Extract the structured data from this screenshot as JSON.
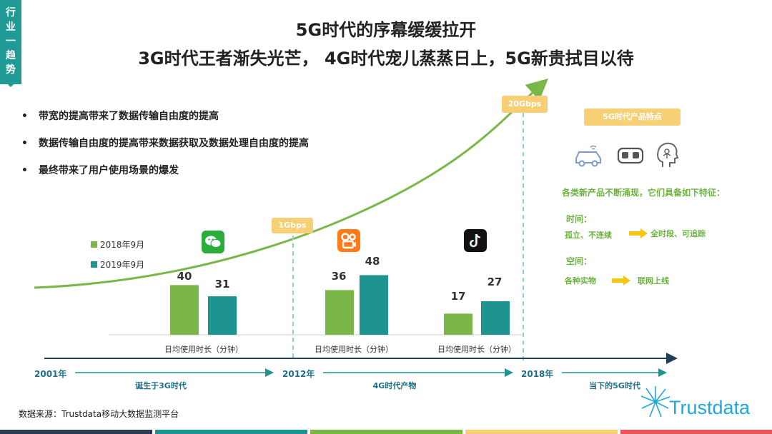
{
  "tag": {
    "chars": [
      "行",
      "业",
      "一",
      "趋",
      "势"
    ]
  },
  "title": {
    "line1": "5G时代的序幕缓缓拉开",
    "line2": "3G时代王者渐失光芒， 4G时代宠儿蒸蒸日上，5G新贵拭目以待"
  },
  "bullets": [
    "带宽的提高带来了数据传输自由度的提高",
    "数据传输自由度的提高带来数据获取及数据处理自由度的提高",
    "最终带来了用户使用场景的爆发"
  ],
  "bandwidth": {
    "b1": "1Gbps",
    "b2": "20Gbps"
  },
  "chart_data": {
    "type": "bar",
    "categories": [
      "日均使用时长（分钟）",
      "日均使用时长（分钟）",
      "日均使用时长（分钟）"
    ],
    "apps": [
      "wechat",
      "kuaishou",
      "douyin"
    ],
    "series": [
      {
        "name": "2018年9月",
        "color": "#7ab648",
        "values": [
          40,
          36,
          17
        ]
      },
      {
        "name": "2019年9月",
        "color": "#1d9490",
        "values": [
          31,
          48,
          27
        ]
      }
    ],
    "ylim": [
      0,
      60
    ]
  },
  "timeline": {
    "years": [
      "2001年",
      "2012年",
      "2018年"
    ],
    "eras": [
      "诞生于3G时代",
      "4G时代产物",
      "当下的5G时代"
    ]
  },
  "right_panel": {
    "badge": "5G时代产品特点",
    "headline": "各类新产品不断涌现，它们具备如下特征：",
    "time_label": "时间：",
    "time_from": "孤立、不连续",
    "time_to": "全时段、可追踪",
    "space_label": "空间：",
    "space_from": "各种实物",
    "space_to": "联网上线"
  },
  "source": "数据来源：Trustdata移动大数据监测平台",
  "logo": "Trustdata",
  "colors": {
    "teal": "#1d9490",
    "green": "#7ab648",
    "yellow": "#f7cf74",
    "dark": "#1f6e86"
  }
}
